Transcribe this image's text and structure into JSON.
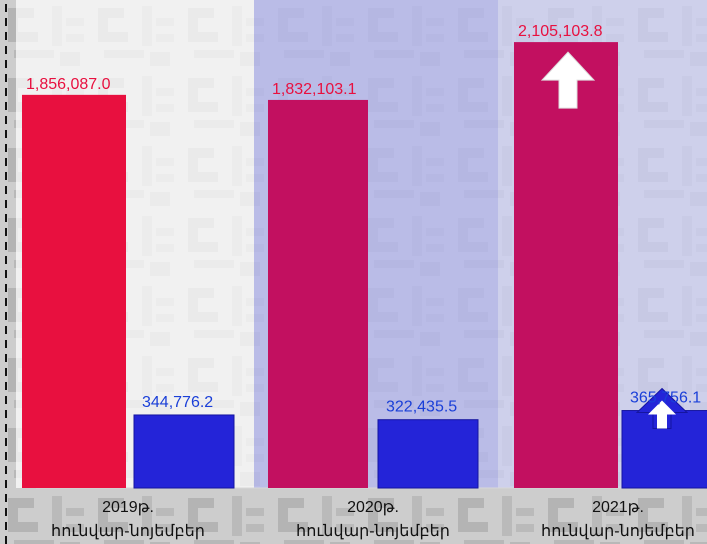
{
  "chart_data": {
    "type": "bar",
    "categories": [
      [
        "2019թ.",
        "հունվար-նոյեմբեր"
      ],
      [
        "2020թ.",
        "հունվար-նոյեմբեր"
      ],
      [
        "2021թ.",
        "հունվար-նոյեմբեր"
      ]
    ],
    "series": [
      {
        "values": [
          1856087.0,
          1832103.1,
          2105103.8
        ],
        "labels": [
          "1,856,087.0",
          "1,832,103.1",
          "2,105,103.8"
        ]
      },
      {
        "values": [
          344776.2,
          322435.5,
          365756.1
        ],
        "labels": [
          "344,776.2",
          "322,435.5",
          "365,756.1"
        ]
      }
    ],
    "ylim": [
      0,
      2200000
    ],
    "colors": {
      "series_1": [
        "#e8103f",
        "#c21060",
        "#c21060"
      ],
      "series_1_label": "#e8103f",
      "series_2": "#2424d8",
      "series_2_label": "#1a3fd8",
      "panel_2020": "#b5b7ee",
      "panel_2021": "#cfd1f6"
    },
    "arrows": [
      {
        "category": 2,
        "series": 0,
        "direction": "up",
        "color": "#ffffff"
      },
      {
        "category": 2,
        "series": 1,
        "direction": "up",
        "color": "#ffffff"
      }
    ],
    "grid": false,
    "legend": "none"
  }
}
